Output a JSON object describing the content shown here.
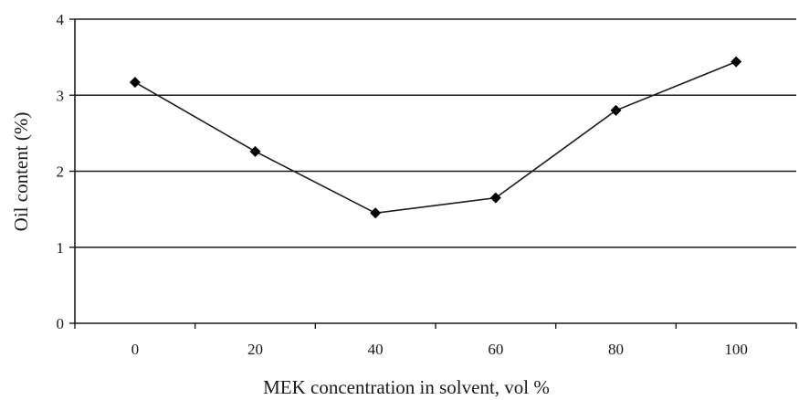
{
  "chart_data": {
    "type": "line",
    "title": "",
    "xlabel": "MEK concentration in solvent, vol %",
    "ylabel": "Oil content (%)",
    "x": [
      0,
      20,
      40,
      60,
      80,
      100
    ],
    "x_tick_labels": [
      "0",
      "20",
      "40",
      "60",
      "80",
      "100"
    ],
    "y_tick_labels": [
      "0",
      "1",
      "2",
      "3",
      "4"
    ],
    "ylim": [
      0,
      4
    ],
    "grid": true,
    "legend": "none",
    "series": [
      {
        "values": [
          3.17,
          2.26,
          1.45,
          1.65,
          2.8,
          3.44
        ],
        "marker": "diamond",
        "color": "#000000"
      }
    ]
  }
}
